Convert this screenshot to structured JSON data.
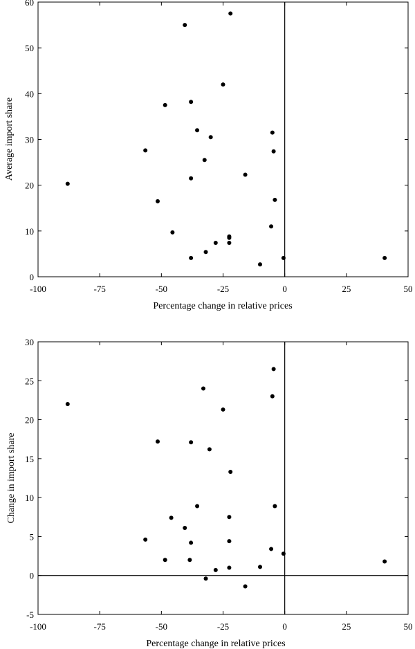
{
  "chart_data": [
    {
      "type": "scatter",
      "xlabel": "Percentage change in relative prices",
      "ylabel": "Average import share",
      "xlim": [
        -100,
        50
      ],
      "ylim": [
        0,
        60
      ],
      "xticks": [
        -100,
        -75,
        -50,
        -25,
        0,
        25,
        50
      ],
      "yticks": [
        0,
        10,
        20,
        30,
        40,
        50,
        60
      ],
      "reference_lines": {
        "x": 0
      },
      "grid": false,
      "points": [
        {
          "x": -22,
          "y": 57.5
        },
        {
          "x": -40.5,
          "y": 55
        },
        {
          "x": -25,
          "y": 42
        },
        {
          "x": -38,
          "y": 38.2
        },
        {
          "x": -48.5,
          "y": 37.5
        },
        {
          "x": -35.5,
          "y": 32
        },
        {
          "x": -30,
          "y": 30.5
        },
        {
          "x": -5,
          "y": 31.5
        },
        {
          "x": -56.5,
          "y": 27.6
        },
        {
          "x": -4.5,
          "y": 27.4
        },
        {
          "x": -32.5,
          "y": 25.5
        },
        {
          "x": -16,
          "y": 22.3
        },
        {
          "x": -38,
          "y": 21.5
        },
        {
          "x": -88,
          "y": 20.3
        },
        {
          "x": -51.5,
          "y": 16.5
        },
        {
          "x": -4,
          "y": 16.8
        },
        {
          "x": -5.5,
          "y": 11
        },
        {
          "x": -45.5,
          "y": 9.7
        },
        {
          "x": -22.5,
          "y": 8.8
        },
        {
          "x": -22.5,
          "y": 8.5
        },
        {
          "x": -28,
          "y": 7.4
        },
        {
          "x": -22.5,
          "y": 7.4
        },
        {
          "x": -32,
          "y": 5.4
        },
        {
          "x": -38,
          "y": 4.1
        },
        {
          "x": -0.5,
          "y": 4.1
        },
        {
          "x": -10,
          "y": 2.7
        },
        {
          "x": 40.5,
          "y": 4.1
        }
      ]
    },
    {
      "type": "scatter",
      "xlabel": "Percentage change in relative prices",
      "ylabel": "Change in import share",
      "xlim": [
        -100,
        50
      ],
      "ylim": [
        -5,
        30
      ],
      "xticks": [
        -100,
        -75,
        -50,
        -25,
        0,
        25,
        50
      ],
      "yticks": [
        -5,
        0,
        5,
        10,
        15,
        20,
        25,
        30
      ],
      "reference_lines": {
        "x": 0,
        "y": 0
      },
      "grid": false,
      "points": [
        {
          "x": -4.5,
          "y": 26.5
        },
        {
          "x": -33,
          "y": 24
        },
        {
          "x": -5,
          "y": 23
        },
        {
          "x": -88,
          "y": 22
        },
        {
          "x": -25,
          "y": 21.3
        },
        {
          "x": -51.5,
          "y": 17.2
        },
        {
          "x": -38,
          "y": 17.1
        },
        {
          "x": -30.5,
          "y": 16.2
        },
        {
          "x": -22,
          "y": 13.3
        },
        {
          "x": -35.5,
          "y": 8.9
        },
        {
          "x": -4,
          "y": 8.9
        },
        {
          "x": -46,
          "y": 7.4
        },
        {
          "x": -22.5,
          "y": 7.5
        },
        {
          "x": -40.5,
          "y": 6.1
        },
        {
          "x": -56.5,
          "y": 4.6
        },
        {
          "x": -38,
          "y": 4.2
        },
        {
          "x": -22.5,
          "y": 4.4
        },
        {
          "x": -5.5,
          "y": 3.4
        },
        {
          "x": -0.5,
          "y": 2.8
        },
        {
          "x": -48.5,
          "y": 2
        },
        {
          "x": -38.5,
          "y": 2
        },
        {
          "x": -22.5,
          "y": 1
        },
        {
          "x": -10,
          "y": 1.1
        },
        {
          "x": -28,
          "y": 0.7
        },
        {
          "x": -32,
          "y": -0.4
        },
        {
          "x": -16,
          "y": -1.4
        },
        {
          "x": 40.5,
          "y": 1.8
        }
      ]
    }
  ]
}
